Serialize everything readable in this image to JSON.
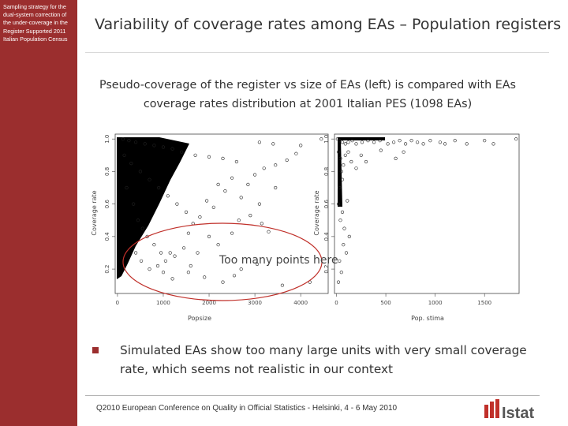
{
  "sidebar": {
    "caption": "Sampling strategy for the dual-system correction of the under-coverage in the Register Supported 2011 Italian Population Census"
  },
  "slide": {
    "title": "Variability of coverage rates among EAs – Population registers",
    "subtitle": "Pseudo-coverage of the register vs size of EAs (left) is compared with EAs coverage rates distribution at 2001 Italian PES (1098 EAs)",
    "annotation": "Too many points here",
    "bullet": "Simulated EAs show too many large units with very small coverage rate, which seems not realistic in our context",
    "footer": "Q2010 European Conference on Quality in Official Statistics - Helsinki, 4 - 6 May 2010",
    "logo_text": "Istat"
  },
  "colors": {
    "sidebar": "#9b2e2e",
    "annotation_ellipse": "#c0302a",
    "logo": "#c0302a"
  },
  "chart_data": [
    {
      "type": "scatter",
      "xlabel": "Popsize",
      "ylabel": "Coverage rate",
      "xticks": [
        0,
        1000,
        2000,
        3000,
        4000
      ],
      "yticks": [
        0.2,
        0.4,
        0.6,
        0.8,
        1.0
      ],
      "xlim": [
        -50,
        4600
      ],
      "ylim": [
        0.05,
        1.03
      ],
      "points": [
        [
          120,
          1.0
        ],
        [
          250,
          0.99
        ],
        [
          400,
          0.98
        ],
        [
          600,
          0.97
        ],
        [
          800,
          0.96
        ],
        [
          1000,
          0.95
        ],
        [
          1200,
          0.94
        ],
        [
          1400,
          0.92
        ],
        [
          1700,
          0.9
        ],
        [
          2000,
          0.89
        ],
        [
          2300,
          0.88
        ],
        [
          2600,
          0.86
        ],
        [
          3100,
          0.98
        ],
        [
          3400,
          0.97
        ],
        [
          4000,
          0.96
        ],
        [
          4450,
          1.0
        ],
        [
          150,
          0.9
        ],
        [
          300,
          0.85
        ],
        [
          500,
          0.8
        ],
        [
          700,
          0.75
        ],
        [
          900,
          0.7
        ],
        [
          1100,
          0.65
        ],
        [
          1300,
          0.6
        ],
        [
          1500,
          0.55
        ],
        [
          200,
          0.7
        ],
        [
          350,
          0.6
        ],
        [
          450,
          0.5
        ],
        [
          550,
          0.45
        ],
        [
          650,
          0.4
        ],
        [
          800,
          0.35
        ],
        [
          950,
          0.3
        ],
        [
          1050,
          0.25
        ],
        [
          1250,
          0.28
        ],
        [
          1450,
          0.33
        ],
        [
          1550,
          0.42
        ],
        [
          1650,
          0.48
        ],
        [
          1800,
          0.52
        ],
        [
          1950,
          0.62
        ],
        [
          2100,
          0.58
        ],
        [
          2200,
          0.72
        ],
        [
          2350,
          0.68
        ],
        [
          2500,
          0.76
        ],
        [
          2700,
          0.64
        ],
        [
          2850,
          0.72
        ],
        [
          3000,
          0.78
        ],
        [
          3200,
          0.82
        ],
        [
          3450,
          0.84
        ],
        [
          3700,
          0.87
        ],
        [
          3900,
          0.91
        ],
        [
          400,
          0.3
        ],
        [
          520,
          0.25
        ],
        [
          700,
          0.2
        ],
        [
          880,
          0.22
        ],
        [
          1000,
          0.18
        ],
        [
          1150,
          0.3
        ],
        [
          1600,
          0.22
        ],
        [
          1750,
          0.3
        ],
        [
          2000,
          0.4
        ],
        [
          2200,
          0.35
        ],
        [
          2500,
          0.42
        ],
        [
          2650,
          0.5
        ],
        [
          2900,
          0.53
        ],
        [
          3100,
          0.6
        ],
        [
          3300,
          0.43
        ],
        [
          3450,
          0.7
        ],
        [
          1900,
          0.15
        ],
        [
          2300,
          0.12
        ],
        [
          2700,
          0.2
        ],
        [
          3050,
          0.23
        ],
        [
          3600,
          0.1
        ],
        [
          4200,
          0.12
        ],
        [
          1200,
          0.14
        ],
        [
          1550,
          0.18
        ],
        [
          2550,
          0.16
        ],
        [
          3150,
          0.48
        ]
      ]
    },
    {
      "type": "scatter",
      "xlabel": "Pop. stima",
      "ylabel": "Coverage rate",
      "xticks": [
        0,
        500,
        1000,
        1500
      ],
      "yticks": [
        0.2,
        0.4,
        0.6,
        0.8,
        1.0
      ],
      "xlim": [
        -20,
        1850
      ],
      "ylim": [
        0.05,
        1.03
      ],
      "points": [
        [
          10,
          1.0
        ],
        [
          30,
          0.99
        ],
        [
          60,
          0.98
        ],
        [
          90,
          0.97
        ],
        [
          120,
          0.98
        ],
        [
          160,
          0.99
        ],
        [
          200,
          0.97
        ],
        [
          260,
          0.98
        ],
        [
          320,
          0.99
        ],
        [
          380,
          0.98
        ],
        [
          440,
          0.99
        ],
        [
          520,
          0.97
        ],
        [
          580,
          0.98
        ],
        [
          640,
          0.99
        ],
        [
          700,
          0.97
        ],
        [
          760,
          0.99
        ],
        [
          820,
          0.98
        ],
        [
          880,
          0.97
        ],
        [
          950,
          0.99
        ],
        [
          1050,
          0.98
        ],
        [
          1100,
          0.97
        ],
        [
          1200,
          0.99
        ],
        [
          1320,
          0.97
        ],
        [
          1500,
          0.99
        ],
        [
          1590,
          0.97
        ],
        [
          1820,
          1.0
        ],
        [
          20,
          0.92
        ],
        [
          40,
          0.88
        ],
        [
          50,
          0.8
        ],
        [
          60,
          0.75
        ],
        [
          30,
          0.7
        ],
        [
          20,
          0.6
        ],
        [
          70,
          0.84
        ],
        [
          90,
          0.9
        ],
        [
          120,
          0.92
        ],
        [
          150,
          0.86
        ],
        [
          60,
          0.55
        ],
        [
          40,
          0.5
        ],
        [
          80,
          0.45
        ],
        [
          100,
          0.3
        ],
        [
          30,
          0.25
        ],
        [
          50,
          0.18
        ],
        [
          20,
          0.12
        ],
        [
          70,
          0.35
        ],
        [
          110,
          0.62
        ],
        [
          130,
          0.4
        ],
        [
          200,
          0.82
        ],
        [
          250,
          0.9
        ],
        [
          300,
          0.86
        ],
        [
          450,
          0.93
        ],
        [
          600,
          0.88
        ],
        [
          680,
          0.92
        ]
      ]
    }
  ]
}
